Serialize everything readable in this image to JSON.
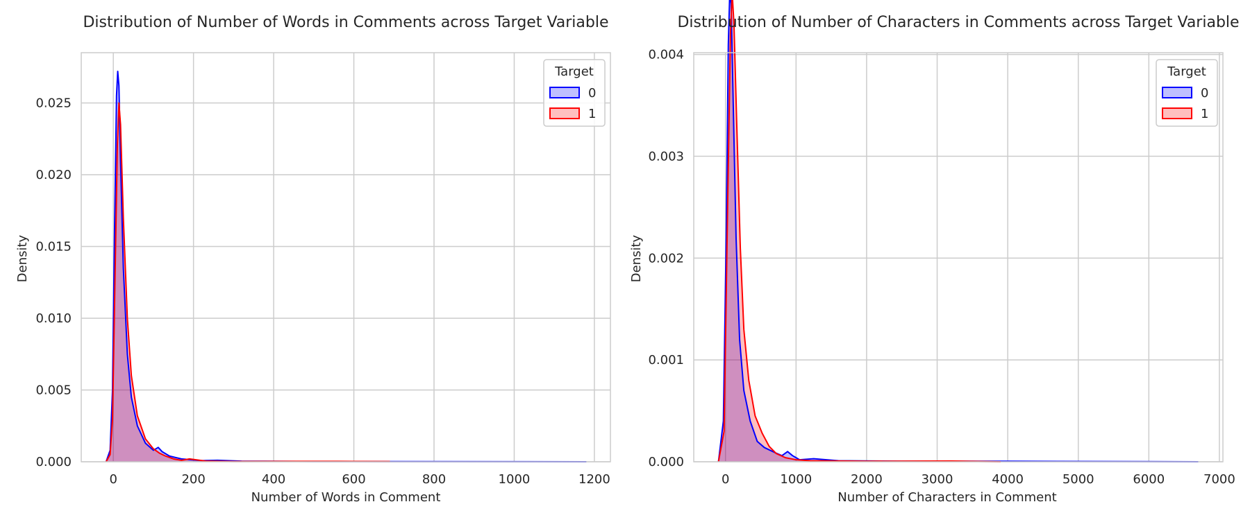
{
  "colors": {
    "target_0": "#0000ff",
    "target_1": "#ff0000",
    "grid": "#cccccc",
    "frame": "#cccccc",
    "text": "#262626"
  },
  "chart_data": [
    {
      "type": "area",
      "title": "Distribution of Number of Words in Comments across Target Variable",
      "xlabel": "Number of Words in Comment",
      "ylabel": "Density",
      "xlim": [
        -80,
        1240
      ],
      "ylim": [
        0,
        0.0285
      ],
      "xticks": [
        0,
        200,
        400,
        600,
        800,
        1000,
        1200
      ],
      "xtick_labels": [
        "0",
        "200",
        "400",
        "600",
        "800",
        "1000",
        "1200"
      ],
      "yticks": [
        0,
        0.005,
        0.01,
        0.015,
        0.02,
        0.025
      ],
      "ytick_labels": [
        "0.000",
        "0.005",
        "0.010",
        "0.015",
        "0.020",
        "0.025"
      ],
      "grid": true,
      "legend": {
        "title": "Target",
        "location": "upper right",
        "entries": [
          "0",
          "1"
        ]
      },
      "series": [
        {
          "name": "0",
          "color": "#0000ff",
          "points": [
            [
              -18,
              0
            ],
            [
              -8,
              0.0008
            ],
            [
              -2,
              0.005
            ],
            [
              3,
              0.016
            ],
            [
              8,
              0.0255
            ],
            [
              11,
              0.0272
            ],
            [
              14,
              0.0262
            ],
            [
              18,
              0.021
            ],
            [
              25,
              0.0135
            ],
            [
              35,
              0.0075
            ],
            [
              45,
              0.0045
            ],
            [
              60,
              0.0025
            ],
            [
              80,
              0.0013
            ],
            [
              100,
              0.0008
            ],
            [
              112,
              0.001
            ],
            [
              122,
              0.0007
            ],
            [
              140,
              0.0004
            ],
            [
              170,
              0.0002
            ],
            [
              220,
              8e-05
            ],
            [
              260,
              0.0001
            ],
            [
              320,
              4e-05
            ],
            [
              500,
              2e-05
            ],
            [
              800,
              1e-05
            ],
            [
              1180,
              0
            ]
          ]
        },
        {
          "name": "1",
          "color": "#ff0000",
          "points": [
            [
              -18,
              0
            ],
            [
              -8,
              0.0005
            ],
            [
              -2,
              0.003
            ],
            [
              5,
              0.014
            ],
            [
              10,
              0.022
            ],
            [
              14,
              0.025
            ],
            [
              18,
              0.0235
            ],
            [
              25,
              0.017
            ],
            [
              35,
              0.01
            ],
            [
              45,
              0.006
            ],
            [
              60,
              0.0032
            ],
            [
              80,
              0.0016
            ],
            [
              100,
              0.0009
            ],
            [
              115,
              0.0006
            ],
            [
              130,
              0.0004
            ],
            [
              150,
              0.0002
            ],
            [
              170,
              0.0001
            ],
            [
              190,
              0.0002
            ],
            [
              230,
              5e-05
            ],
            [
              300,
              2e-05
            ],
            [
              460,
              3e-05
            ],
            [
              560,
              3e-05
            ],
            [
              690,
              2e-05
            ]
          ]
        }
      ]
    },
    {
      "type": "area",
      "title": "Distribution of Number of Characters in Comments across Target Variable",
      "xlabel": "Number of Characters in Comment",
      "ylabel": "Density",
      "xlim": [
        -450,
        7050
      ],
      "ylim": [
        0,
        0.0040175
      ],
      "ylim_note": "",
      "xticks": [
        0,
        1000,
        2000,
        3000,
        4000,
        5000,
        6000,
        7000
      ],
      "xtick_labels": [
        "0",
        "1000",
        "2000",
        "3000",
        "4000",
        "5000",
        "6000",
        "7000"
      ],
      "yticks": [
        0,
        0.001,
        0.002,
        0.003,
        0.004
      ],
      "ytick_labels": [
        "0.000",
        "0.001",
        "0.002",
        "0.003",
        "0.004"
      ],
      "grid": true,
      "legend": {
        "title": "Target",
        "location": "upper right",
        "entries": [
          "0",
          "1"
        ]
      },
      "series": [
        {
          "name": "0",
          "color": "#0000ff",
          "points": [
            [
              -100,
              0
            ],
            [
              -30,
              0.0004
            ],
            [
              10,
              0.0022
            ],
            [
              40,
              0.0041
            ],
            [
              60,
              0.0046
            ],
            [
              80,
              0.0045
            ],
            [
              110,
              0.0035
            ],
            [
              150,
              0.0022
            ],
            [
              200,
              0.0012
            ],
            [
              260,
              0.0007
            ],
            [
              350,
              0.0004
            ],
            [
              450,
              0.0002
            ],
            [
              550,
              0.00014
            ],
            [
              700,
              9e-05
            ],
            [
              800,
              6e-05
            ],
            [
              880,
              0.0001
            ],
            [
              950,
              6e-05
            ],
            [
              1050,
              2e-05
            ],
            [
              1250,
              3e-05
            ],
            [
              1600,
              1e-05
            ],
            [
              2500,
              5e-06
            ],
            [
              4000,
              5e-06
            ],
            [
              6700,
              0
            ]
          ]
        },
        {
          "name": "1",
          "color": "#ff0000",
          "points": [
            [
              -100,
              0
            ],
            [
              -20,
              0.0003
            ],
            [
              30,
              0.0025
            ],
            [
              70,
              0.0042
            ],
            [
              95,
              0.0046
            ],
            [
              120,
              0.0043
            ],
            [
              160,
              0.0033
            ],
            [
              210,
              0.0021
            ],
            [
              260,
              0.0013
            ],
            [
              330,
              0.0008
            ],
            [
              420,
              0.00045
            ],
            [
              520,
              0.00028
            ],
            [
              620,
              0.00015
            ],
            [
              720,
              8e-05
            ],
            [
              850,
              4e-05
            ],
            [
              1000,
              2e-05
            ],
            [
              1200,
              1e-05
            ],
            [
              2000,
              5e-06
            ],
            [
              3200,
              8e-06
            ],
            [
              3500,
              4e-06
            ],
            [
              3900,
              0
            ]
          ]
        }
      ]
    }
  ]
}
